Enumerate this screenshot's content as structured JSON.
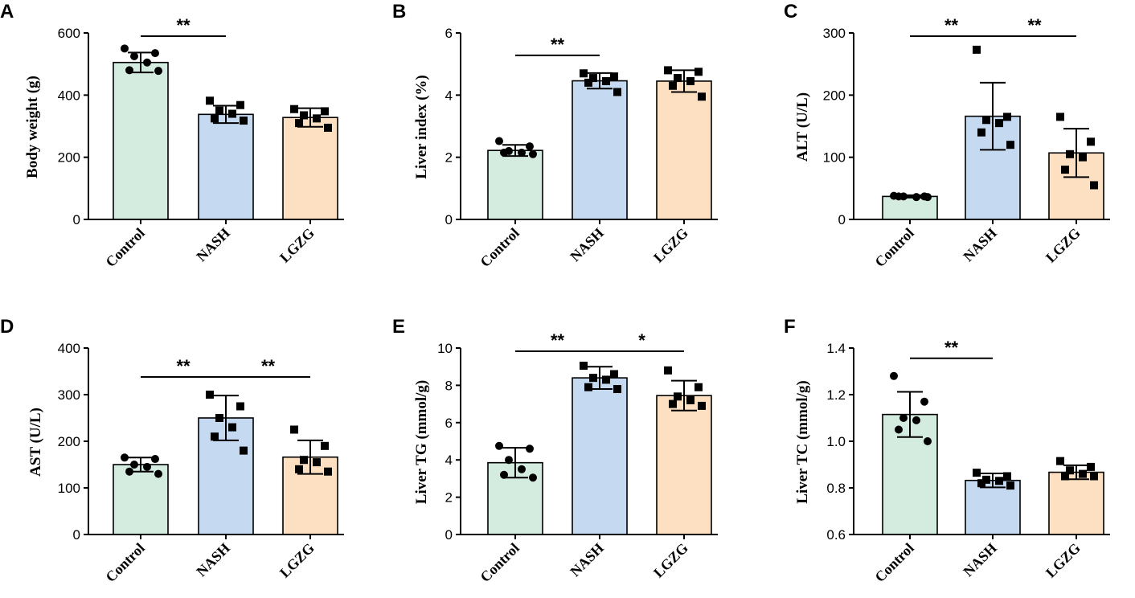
{
  "chart_data": [
    {
      "panel": "A",
      "type": "bar",
      "ylabel": "Body weight (g)",
      "categories": [
        "Control",
        "NASH",
        "LGZG"
      ],
      "ylim": [
        0,
        600
      ],
      "yticks": [
        "0",
        "200",
        "400",
        "600"
      ],
      "means": [
        505,
        338,
        328
      ],
      "sd": [
        32,
        28,
        30
      ],
      "colors": [
        "#d4ebe0",
        "#c5daf1",
        "#fde0c2"
      ],
      "markers": [
        "circle",
        "square",
        "square"
      ],
      "points": [
        [
          550,
          535,
          525,
          505,
          480,
          478
        ],
        [
          382,
          368,
          350,
          340,
          325,
          318
        ],
        [
          355,
          348,
          335,
          325,
          310,
          295
        ]
      ],
      "significance": [
        {
          "from": 0,
          "to": 1,
          "label": "**"
        }
      ]
    },
    {
      "panel": "B",
      "type": "bar",
      "ylabel": "Liver index (%)",
      "categories": [
        "Control",
        "NASH",
        "LGZG"
      ],
      "ylim": [
        0,
        6
      ],
      "yticks": [
        "0",
        "2",
        "4",
        "6"
      ],
      "means": [
        2.22,
        4.46,
        4.45
      ],
      "sd": [
        0.18,
        0.25,
        0.35
      ],
      "colors": [
        "#d4ebe0",
        "#c5daf1",
        "#fde0c2"
      ],
      "markers": [
        "circle",
        "square",
        "square"
      ],
      "points": [
        [
          2.52,
          2.35,
          2.2,
          2.15,
          2.15,
          2.1
        ],
        [
          4.7,
          4.6,
          4.55,
          4.45,
          4.4,
          4.1
        ],
        [
          4.8,
          4.75,
          4.55,
          4.45,
          4.3,
          3.95
        ]
      ],
      "significance": [
        {
          "from": 0,
          "to": 1,
          "label": "**"
        }
      ]
    },
    {
      "panel": "C",
      "type": "bar",
      "ylabel": "ALT (U/L)",
      "categories": [
        "Control",
        "NASH",
        "LGZG"
      ],
      "ylim": [
        0,
        300
      ],
      "yticks": [
        "0",
        "100",
        "200",
        "300"
      ],
      "means": [
        37,
        166,
        107
      ],
      "sd": [
        2,
        54,
        39
      ],
      "colors": [
        "#d4ebe0",
        "#c5daf1",
        "#fde0c2"
      ],
      "markers": [
        "circle",
        "square",
        "square"
      ],
      "points": [
        [
          38,
          37,
          37,
          36,
          37,
          36
        ],
        [
          273,
          165,
          160,
          155,
          140,
          120
        ],
        [
          165,
          125,
          105,
          100,
          80,
          55
        ]
      ],
      "significance": [
        {
          "from": 0,
          "to": 1,
          "label": "**"
        },
        {
          "from": 1,
          "to": 2,
          "label": "**"
        }
      ]
    },
    {
      "panel": "D",
      "type": "bar",
      "ylabel": "AST (U/L)",
      "categories": [
        "Control",
        "NASH",
        "LGZG"
      ],
      "ylim": [
        0,
        400
      ],
      "yticks": [
        "0",
        "100",
        "200",
        "300",
        "400"
      ],
      "means": [
        150,
        250,
        166
      ],
      "sd": [
        15,
        48,
        36
      ],
      "colors": [
        "#d4ebe0",
        "#c5daf1",
        "#fde0c2"
      ],
      "markers": [
        "circle",
        "square",
        "square"
      ],
      "points": [
        [
          165,
          162,
          150,
          145,
          135,
          130
        ],
        [
          300,
          275,
          250,
          230,
          210,
          180
        ],
        [
          225,
          190,
          160,
          155,
          140,
          135
        ]
      ],
      "significance": [
        {
          "from": 0,
          "to": 1,
          "label": "**"
        },
        {
          "from": 1,
          "to": 2,
          "label": "**"
        }
      ]
    },
    {
      "panel": "E",
      "type": "bar",
      "ylabel": "Liver TG (mmol/g)",
      "categories": [
        "Control",
        "NASH",
        "LGZG"
      ],
      "ylim": [
        0,
        10
      ],
      "yticks": [
        "0",
        "2",
        "4",
        "6",
        "8",
        "10"
      ],
      "means": [
        3.85,
        8.4,
        7.45
      ],
      "sd": [
        0.8,
        0.6,
        0.8
      ],
      "colors": [
        "#d4ebe0",
        "#c5daf1",
        "#fde0c2"
      ],
      "markers": [
        "circle",
        "square",
        "square"
      ],
      "points": [
        [
          4.75,
          4.6,
          4.0,
          3.5,
          3.2,
          3.05
        ],
        [
          9.05,
          8.6,
          8.4,
          8.3,
          7.9,
          7.8
        ],
        [
          8.8,
          7.9,
          7.4,
          7.2,
          7.0,
          6.9
        ]
      ],
      "significance": [
        {
          "from": 0,
          "to": 1,
          "label": "**"
        },
        {
          "from": 1,
          "to": 2,
          "label": "*"
        }
      ]
    },
    {
      "panel": "F",
      "type": "bar",
      "ylabel": "Liver TC (mmol/g)",
      "categories": [
        "Control",
        "NASH",
        "LGZG"
      ],
      "ylim": [
        0.6,
        1.4
      ],
      "yticks": [
        "0.6",
        "0.8",
        "1.0",
        "1.2",
        "1.4"
      ],
      "means": [
        1.115,
        0.832,
        0.867
      ],
      "sd": [
        0.097,
        0.03,
        0.03
      ],
      "colors": [
        "#d4ebe0",
        "#c5daf1",
        "#fde0c2"
      ],
      "markers": [
        "circle",
        "square",
        "square"
      ],
      "points": [
        [
          1.28,
          1.17,
          1.1,
          1.09,
          1.05,
          1.0
        ],
        [
          0.865,
          0.85,
          0.835,
          0.83,
          0.82,
          0.81
        ],
        [
          0.915,
          0.89,
          0.875,
          0.86,
          0.85,
          0.85
        ]
      ],
      "significance": [
        {
          "from": 0,
          "to": 1,
          "label": "**"
        }
      ]
    }
  ]
}
